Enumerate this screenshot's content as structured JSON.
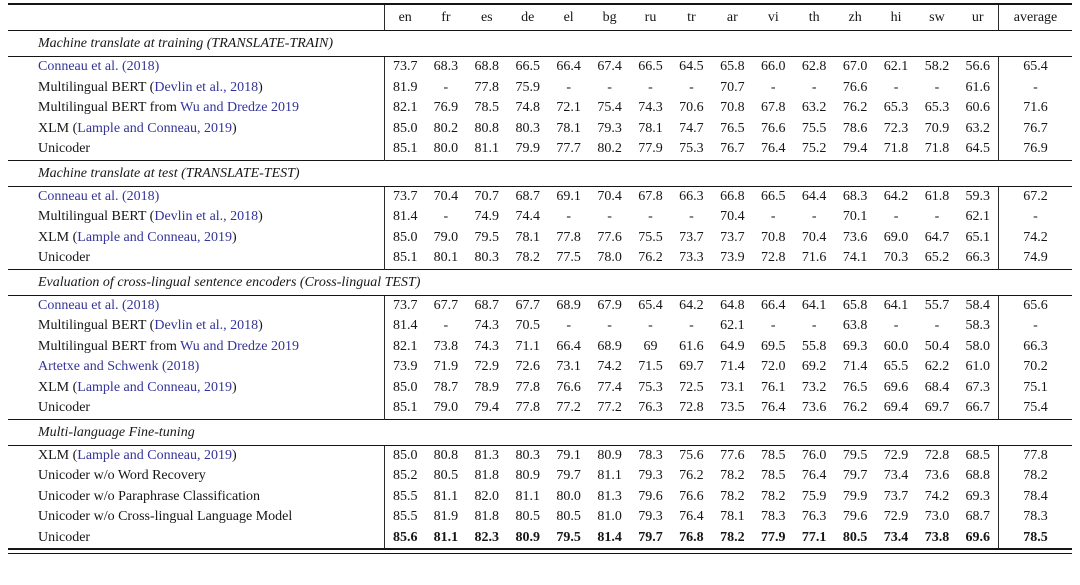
{
  "colors": {
    "citation": "#34349a",
    "ink": "#161616"
  },
  "table": {
    "columns": [
      "en",
      "fr",
      "es",
      "de",
      "el",
      "bg",
      "ru",
      "tr",
      "ar",
      "vi",
      "th",
      "zh",
      "hi",
      "sw",
      "ur",
      "average"
    ],
    "sections": [
      {
        "title": "Machine translate at training (TRANSLATE-TRAIN)",
        "rows": [
          {
            "label": [
              {
                "text": "Conneau et al. (2018)",
                "cite": true
              }
            ],
            "values": [
              "73.7",
              "68.3",
              "68.8",
              "66.5",
              "66.4",
              "67.4",
              "66.5",
              "64.5",
              "65.8",
              "66.0",
              "62.8",
              "67.0",
              "62.1",
              "58.2",
              "56.6",
              "65.4"
            ],
            "bold": false
          },
          {
            "label": [
              {
                "text": "Multilingual BERT (",
                "cite": false
              },
              {
                "text": "Devlin et al., 2018",
                "cite": true
              },
              {
                "text": ")",
                "cite": false
              }
            ],
            "values": [
              "81.9",
              "-",
              "77.8",
              "75.9",
              "-",
              "-",
              "-",
              "-",
              "70.7",
              "-",
              "-",
              "76.6",
              "-",
              "-",
              "61.6",
              "-"
            ],
            "bold": false
          },
          {
            "label": [
              {
                "text": "Multilingual BERT from ",
                "cite": false
              },
              {
                "text": "Wu and Dredze 2019",
                "cite": true
              }
            ],
            "values": [
              "82.1",
              "76.9",
              "78.5",
              "74.8",
              "72.1",
              "75.4",
              "74.3",
              "70.6",
              "70.8",
              "67.8",
              "63.2",
              "76.2",
              "65.3",
              "65.3",
              "60.6",
              "71.6"
            ],
            "bold": false
          },
          {
            "label": [
              {
                "text": "XLM (",
                "cite": false
              },
              {
                "text": "Lample and Conneau, 2019",
                "cite": true
              },
              {
                "text": ")",
                "cite": false
              }
            ],
            "values": [
              "85.0",
              "80.2",
              "80.8",
              "80.3",
              "78.1",
              "79.3",
              "78.1",
              "74.7",
              "76.5",
              "76.6",
              "75.5",
              "78.6",
              "72.3",
              "70.9",
              "63.2",
              "76.7"
            ],
            "bold": false
          },
          {
            "label": [
              {
                "text": "Unicoder",
                "cite": false
              }
            ],
            "values": [
              "85.1",
              "80.0",
              "81.1",
              "79.9",
              "77.7",
              "80.2",
              "77.9",
              "75.3",
              "76.7",
              "76.4",
              "75.2",
              "79.4",
              "71.8",
              "71.8",
              "64.5",
              "76.9"
            ],
            "bold": false
          }
        ]
      },
      {
        "title": "Machine translate at test (TRANSLATE-TEST)",
        "rows": [
          {
            "label": [
              {
                "text": "Conneau et al. (2018)",
                "cite": true
              }
            ],
            "values": [
              "73.7",
              "70.4",
              "70.7",
              "68.7",
              "69.1",
              "70.4",
              "67.8",
              "66.3",
              "66.8",
              "66.5",
              "64.4",
              "68.3",
              "64.2",
              "61.8",
              "59.3",
              "67.2"
            ],
            "bold": false
          },
          {
            "label": [
              {
                "text": "Multilingual BERT (",
                "cite": false
              },
              {
                "text": "Devlin et al., 2018",
                "cite": true
              },
              {
                "text": ")",
                "cite": false
              }
            ],
            "values": [
              "81.4",
              "-",
              "74.9",
              "74.4",
              "-",
              "-",
              "-",
              "-",
              "70.4",
              "-",
              "-",
              "70.1",
              "-",
              "-",
              "62.1",
              "-"
            ],
            "bold": false
          },
          {
            "label": [
              {
                "text": "XLM (",
                "cite": false
              },
              {
                "text": "Lample and Conneau, 2019",
                "cite": true
              },
              {
                "text": ")",
                "cite": false
              }
            ],
            "values": [
              "85.0",
              "79.0",
              "79.5",
              "78.1",
              "77.8",
              "77.6",
              "75.5",
              "73.7",
              "73.7",
              "70.8",
              "70.4",
              "73.6",
              "69.0",
              "64.7",
              "65.1",
              "74.2"
            ],
            "bold": false
          },
          {
            "label": [
              {
                "text": "Unicoder",
                "cite": false
              }
            ],
            "values": [
              "85.1",
              "80.1",
              "80.3",
              "78.2",
              "77.5",
              "78.0",
              "76.2",
              "73.3",
              "73.9",
              "72.8",
              "71.6",
              "74.1",
              "70.3",
              "65.2",
              "66.3",
              "74.9"
            ],
            "bold": false
          }
        ]
      },
      {
        "title": "Evaluation of cross-lingual sentence encoders (Cross-lingual TEST)",
        "rows": [
          {
            "label": [
              {
                "text": "Conneau et al. (2018)",
                "cite": true
              }
            ],
            "values": [
              "73.7",
              "67.7",
              "68.7",
              "67.7",
              "68.9",
              "67.9",
              "65.4",
              "64.2",
              "64.8",
              "66.4",
              "64.1",
              "65.8",
              "64.1",
              "55.7",
              "58.4",
              "65.6"
            ],
            "bold": false
          },
          {
            "label": [
              {
                "text": "Multilingual BERT (",
                "cite": false
              },
              {
                "text": "Devlin et al., 2018",
                "cite": true
              },
              {
                "text": ")",
                "cite": false
              }
            ],
            "values": [
              "81.4",
              "-",
              "74.3",
              "70.5",
              "-",
              "-",
              "-",
              "-",
              "62.1",
              "-",
              "-",
              "63.8",
              "-",
              "-",
              "58.3",
              "-"
            ],
            "bold": false
          },
          {
            "label": [
              {
                "text": "Multilingual BERT from ",
                "cite": false
              },
              {
                "text": "Wu and Dredze 2019",
                "cite": true
              }
            ],
            "values": [
              "82.1",
              "73.8",
              "74.3",
              "71.1",
              "66.4",
              "68.9",
              "69",
              "61.6",
              "64.9",
              "69.5",
              "55.8",
              "69.3",
              "60.0",
              "50.4",
              "58.0",
              "66.3"
            ],
            "bold": false
          },
          {
            "label": [
              {
                "text": "Artetxe and Schwenk (2018)",
                "cite": true
              }
            ],
            "values": [
              "73.9",
              "71.9",
              "72.9",
              "72.6",
              "73.1",
              "74.2",
              "71.5",
              "69.7",
              "71.4",
              "72.0",
              "69.2",
              "71.4",
              "65.5",
              "62.2",
              "61.0",
              "70.2"
            ],
            "bold": false
          },
          {
            "label": [
              {
                "text": "XLM (",
                "cite": false
              },
              {
                "text": "Lample and Conneau, 2019",
                "cite": true
              },
              {
                "text": ")",
                "cite": false
              }
            ],
            "values": [
              "85.0",
              "78.7",
              "78.9",
              "77.8",
              "76.6",
              "77.4",
              "75.3",
              "72.5",
              "73.1",
              "76.1",
              "73.2",
              "76.5",
              "69.6",
              "68.4",
              "67.3",
              "75.1"
            ],
            "bold": false
          },
          {
            "label": [
              {
                "text": "Unicoder",
                "cite": false
              }
            ],
            "values": [
              "85.1",
              "79.0",
              "79.4",
              "77.8",
              "77.2",
              "77.2",
              "76.3",
              "72.8",
              "73.5",
              "76.4",
              "73.6",
              "76.2",
              "69.4",
              "69.7",
              "66.7",
              "75.4"
            ],
            "bold": false
          }
        ]
      },
      {
        "title": "Multi-language Fine-tuning",
        "rows": [
          {
            "label": [
              {
                "text": "XLM (",
                "cite": false
              },
              {
                "text": "Lample and Conneau, 2019",
                "cite": true
              },
              {
                "text": ")",
                "cite": false
              }
            ],
            "values": [
              "85.0",
              "80.8",
              "81.3",
              "80.3",
              "79.1",
              "80.9",
              "78.3",
              "75.6",
              "77.6",
              "78.5",
              "76.0",
              "79.5",
              "72.9",
              "72.8",
              "68.5",
              "77.8"
            ],
            "bold": false
          },
          {
            "label": [
              {
                "text": "Unicoder w/o Word Recovery",
                "cite": false
              }
            ],
            "values": [
              "85.2",
              "80.5",
              "81.8",
              "80.9",
              "79.7",
              "81.1",
              "79.3",
              "76.2",
              "78.2",
              "78.5",
              "76.4",
              "79.7",
              "73.4",
              "73.6",
              "68.8",
              "78.2"
            ],
            "bold": false
          },
          {
            "label": [
              {
                "text": "Unicoder w/o Paraphrase Classification",
                "cite": false
              }
            ],
            "values": [
              "85.5",
              "81.1",
              "82.0",
              "81.1",
              "80.0",
              "81.3",
              "79.6",
              "76.6",
              "78.2",
              "78.2",
              "75.9",
              "79.9",
              "73.7",
              "74.2",
              "69.3",
              "78.4"
            ],
            "bold": false
          },
          {
            "label": [
              {
                "text": "Unicoder w/o Cross-lingual Language Model",
                "cite": false
              }
            ],
            "values": [
              "85.5",
              "81.9",
              "81.8",
              "80.5",
              "80.5",
              "81.0",
              "79.3",
              "76.4",
              "78.1",
              "78.3",
              "76.3",
              "79.6",
              "72.9",
              "73.0",
              "68.7",
              "78.3"
            ],
            "bold": false
          },
          {
            "label": [
              {
                "text": "Unicoder",
                "cite": false
              }
            ],
            "values": [
              "85.6",
              "81.1",
              "82.3",
              "80.9",
              "79.5",
              "81.4",
              "79.7",
              "76.8",
              "78.2",
              "77.9",
              "77.1",
              "80.5",
              "73.4",
              "73.8",
              "69.6",
              "78.5"
            ],
            "bold": true
          }
        ]
      }
    ]
  }
}
